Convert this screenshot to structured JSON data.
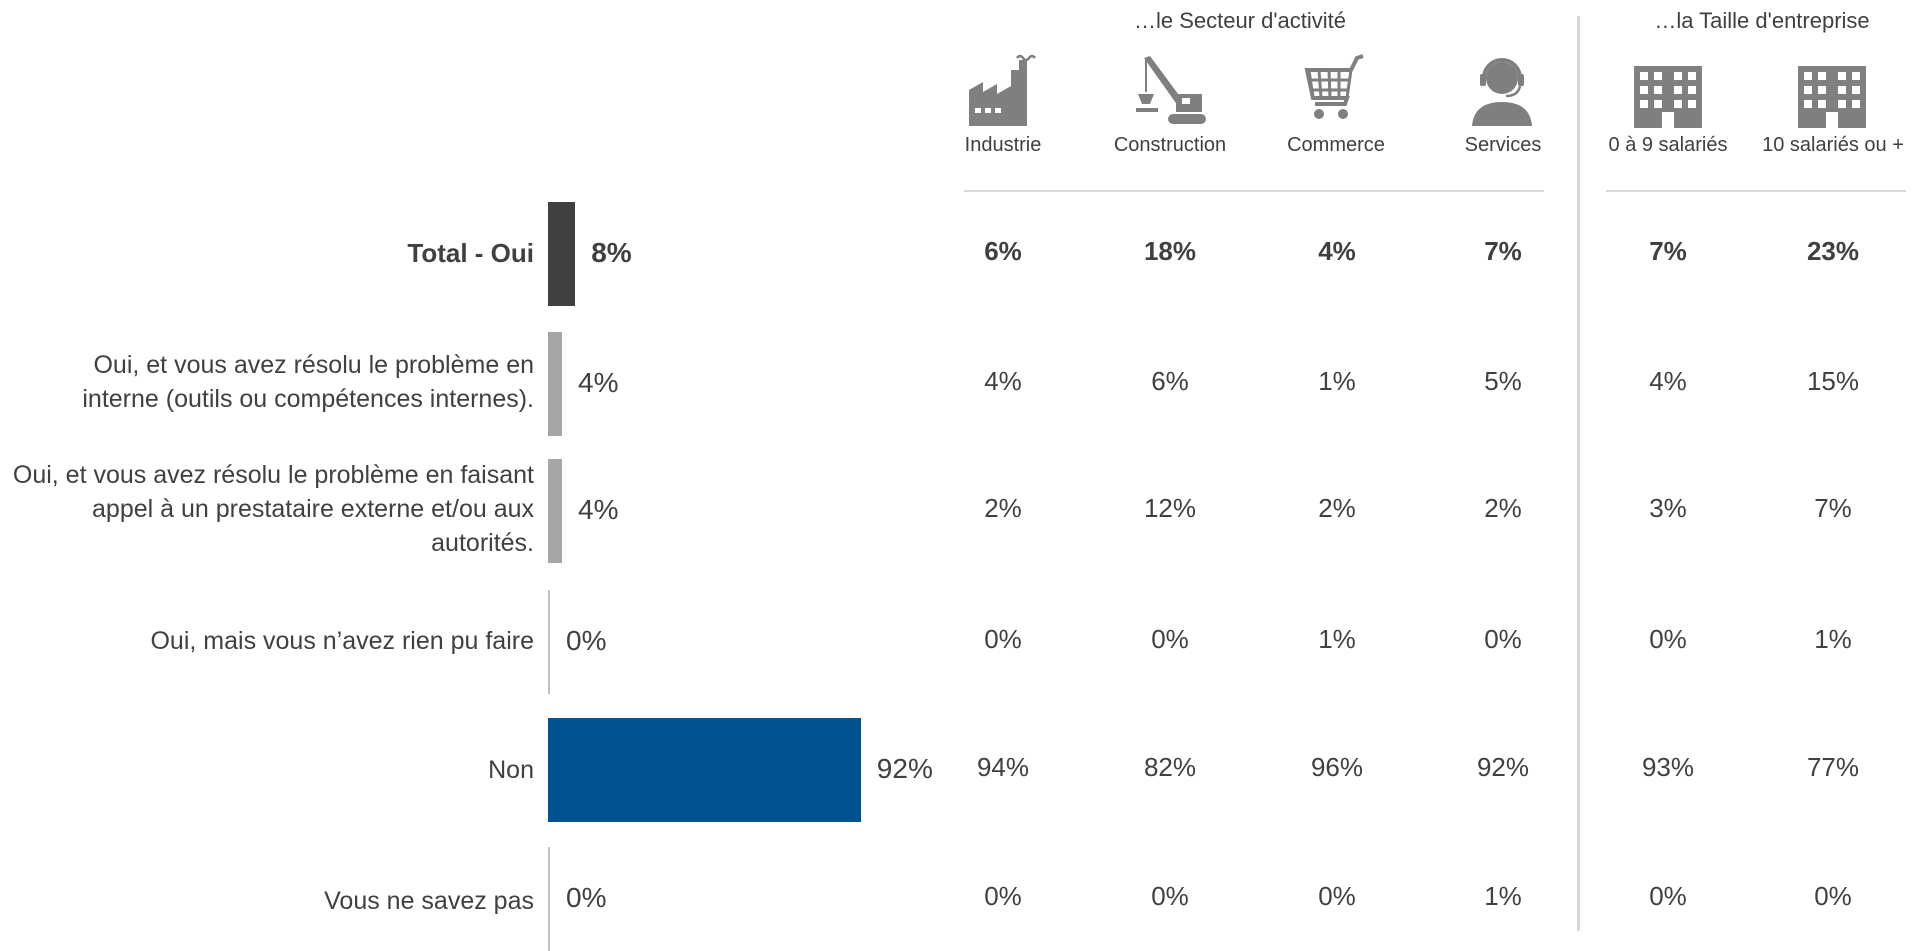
{
  "header": {
    "group_sector": "…le Secteur d'activité",
    "group_size": "…la Taille d'entreprise"
  },
  "columns": [
    {
      "label": "Industrie",
      "icon": "factory-icon"
    },
    {
      "label": "Construction",
      "icon": "crane-icon"
    },
    {
      "label": "Commerce",
      "icon": "shopping-cart-icon"
    },
    {
      "label": "Services",
      "icon": "headset-agent-icon"
    },
    {
      "label": "0 à 9 salariés",
      "icon": "building-icon"
    },
    {
      "label": "10 salariés ou +",
      "icon": "building-icon"
    }
  ],
  "colors": {
    "total_bar": "#404040",
    "sub_bar": "#a6a6a6",
    "non_bar": "#00538e",
    "zero_bar": "#bfbfbf",
    "divider": "#d9d9d9"
  },
  "chart_data": {
    "type": "bar",
    "orientation": "horizontal",
    "categories": [
      "Total - Oui",
      "Oui, et vous avez résolu le problème en interne (outils ou compétences internes).",
      "Oui, et vous avez résolu le problème en faisant appel à un prestataire externe et/ou aux autorités.",
      "Oui, mais vous n’avez rien pu faire",
      "Non",
      "Vous ne savez pas"
    ],
    "values": [
      8,
      4,
      4,
      0,
      92,
      0
    ],
    "value_labels": [
      "8%",
      "4%",
      "4%",
      "0%",
      "92%",
      "0%"
    ],
    "xlim": [
      0,
      100
    ],
    "table": [
      [
        "6%",
        "18%",
        "4%",
        "7%",
        "7%",
        "23%"
      ],
      [
        "4%",
        "6%",
        "1%",
        "5%",
        "4%",
        "15%"
      ],
      [
        "2%",
        "12%",
        "2%",
        "2%",
        "3%",
        "7%"
      ],
      [
        "0%",
        "0%",
        "1%",
        "0%",
        "0%",
        "1%"
      ],
      [
        "94%",
        "82%",
        "96%",
        "92%",
        "93%",
        "77%"
      ],
      [
        "0%",
        "0%",
        "0%",
        "1%",
        "0%",
        "0%"
      ]
    ]
  }
}
